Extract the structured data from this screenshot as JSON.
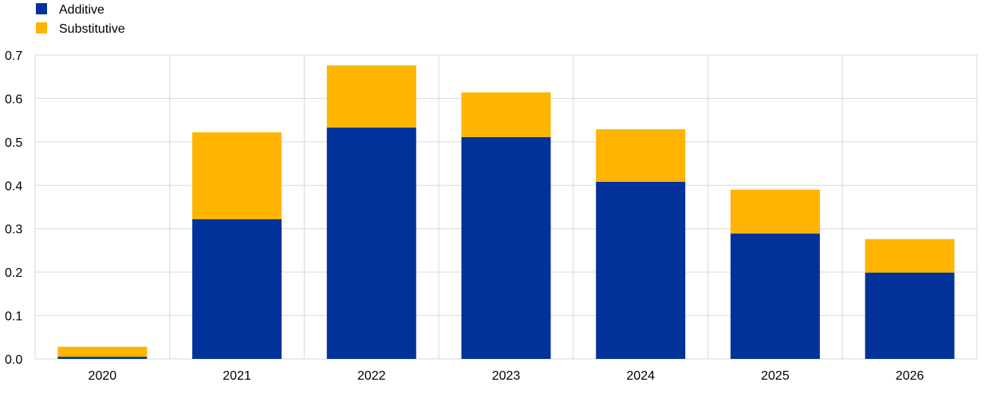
{
  "chart_data": {
    "type": "bar",
    "stacked": true,
    "categories": [
      "2020",
      "2021",
      "2022",
      "2023",
      "2024",
      "2025",
      "2026"
    ],
    "series": [
      {
        "name": "Additive",
        "color": "#003299",
        "values": [
          0.005,
          0.322,
          0.533,
          0.511,
          0.408,
          0.289,
          0.199
        ]
      },
      {
        "name": "Substitutive",
        "color": "#FFB400",
        "values": [
          0.023,
          0.2,
          0.143,
          0.103,
          0.121,
          0.101,
          0.077
        ]
      }
    ],
    "ylim": [
      0,
      0.7
    ],
    "yticks": [
      "0.0",
      "0.1",
      "0.2",
      "0.3",
      "0.4",
      "0.5",
      "0.6",
      "0.7"
    ],
    "grid": true,
    "legend": "top-left",
    "title": "",
    "xlabel": "",
    "ylabel": ""
  }
}
